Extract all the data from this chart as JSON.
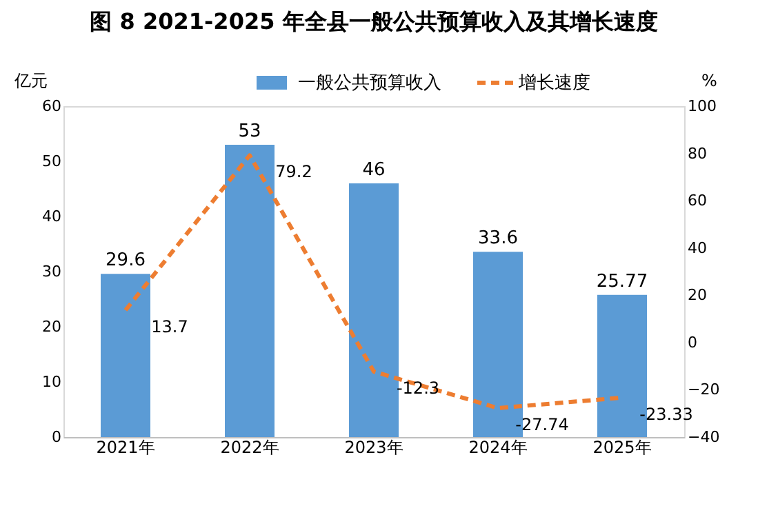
{
  "chart_data": {
    "type": "bar",
    "title": "图 8   2021-2025 年全县一般公共预算收入及其增长速度",
    "categories": [
      "2021年",
      "2022年",
      "2023年",
      "2024年",
      "2025年"
    ],
    "series": [
      {
        "name": "一般公共预算收入",
        "color": "#5b9bd5",
        "values": [
          29.6,
          53,
          46,
          33.6,
          25.77
        ]
      },
      {
        "name": "增长速度",
        "type": "line",
        "axis": "y2",
        "color": "#ed7d31",
        "line_style": "dashed",
        "values": [
          13.7,
          79.2,
          -12.3,
          -27.74,
          -23.33
        ]
      }
    ],
    "ylabel": "亿元",
    "y2label": "%",
    "ylim": [
      0,
      60
    ],
    "yticks": [
      0,
      10,
      20,
      30,
      40,
      50,
      60
    ],
    "y2lim": [
      -40,
      100
    ],
    "y2ticks": [
      -40,
      -20,
      0,
      20,
      40,
      60,
      80,
      100
    ],
    "data_labels": true,
    "grid": false,
    "legend": "top",
    "marker": "none"
  }
}
